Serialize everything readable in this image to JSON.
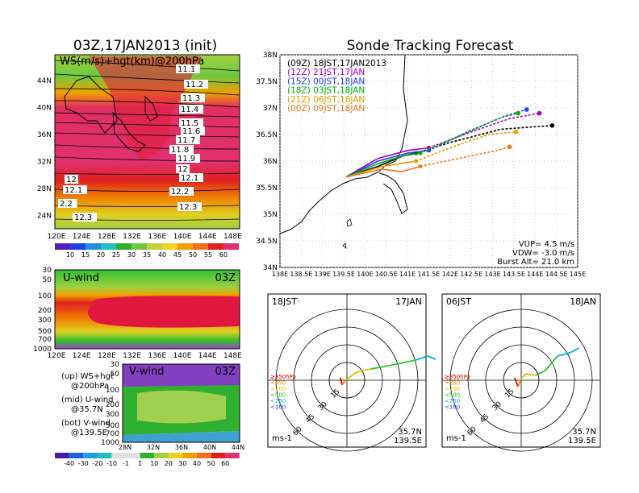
{
  "left": {
    "title": "03Z,17JAN2013 (init)",
    "ws_label": "WS(m/s)+hgt(km)@200hPa",
    "lat_ticks": [
      "44N",
      "40N",
      "36N",
      "32N",
      "28N",
      "24N"
    ],
    "lon_ticks": [
      "120E",
      "124E",
      "128E",
      "132E",
      "136E",
      "140E",
      "144E",
      "148E"
    ],
    "contours": [
      "11.1",
      "11.2",
      "11.3",
      "11.4",
      "11.5",
      "11.6",
      "11.7",
      "11.8",
      "11.9",
      "12",
      "12.1",
      "12.2",
      "12.3",
      "12",
      "12.1",
      "2.2",
      "12.3"
    ],
    "ws_colorbar": [
      "10",
      "15",
      "20",
      "25",
      "30",
      "35",
      "40",
      "45",
      "50",
      "55",
      "60"
    ],
    "uwind_title": "U-wind",
    "uwind_time": "03Z",
    "p_ticks": [
      "30",
      "50",
      "100",
      "200",
      "300",
      "500",
      "700",
      "1000"
    ],
    "vwind_title": "V-wind",
    "vwind_time": "03Z",
    "vlat_ticks": [
      "28N",
      "32N",
      "36N",
      "40N",
      "44N"
    ],
    "v_colorbar": [
      "-40",
      "-30",
      "-20",
      "-10",
      "-1",
      "1",
      "10",
      "20",
      "30",
      "40",
      "50",
      "60"
    ],
    "legend": [
      {
        "a": "(up) WS+hgt",
        "b": "@200hPa"
      },
      {
        "a": "(mid) U-wind",
        "b": "@35.7N"
      },
      {
        "a": "(bot) V-wind",
        "b": "@139.5E"
      }
    ]
  },
  "chart_data": {
    "type": "line",
    "title": "Sonde Tracking Forecast",
    "xlim": [
      138,
      145
    ],
    "ylim": [
      34,
      38
    ],
    "x_ticks": [
      "138E",
      "138.5E",
      "139E",
      "139.5E",
      "140E",
      "140.5E",
      "141E",
      "141.5E",
      "142E",
      "142.5E",
      "143E",
      "143.5E",
      "144E",
      "144.5E",
      "145E"
    ],
    "y_ticks": [
      "38N",
      "37.5N",
      "37N",
      "36.5N",
      "36N",
      "35.5N",
      "35N",
      "34.5N",
      "34N"
    ],
    "series": [
      {
        "name": "(09Z) 18JST,17JAN2013",
        "color": "#000000",
        "points": [
          [
            139.55,
            35.7
          ],
          [
            140.3,
            35.9
          ],
          [
            140.9,
            36.1
          ],
          [
            141.2,
            36.15
          ],
          [
            142.0,
            36.35
          ],
          [
            143.2,
            36.6
          ],
          [
            144.4,
            36.67
          ]
        ]
      },
      {
        "name": "(12Z) 21JST,17JAN",
        "color": "#a000c0",
        "points": [
          [
            139.55,
            35.7
          ],
          [
            140.3,
            36.05
          ],
          [
            141.0,
            36.2
          ],
          [
            141.5,
            36.25
          ],
          [
            142.5,
            36.55
          ],
          [
            143.4,
            36.8
          ],
          [
            144.1,
            36.9
          ]
        ]
      },
      {
        "name": "(15Z) 00JST,18JAN",
        "color": "#1e3cff",
        "points": [
          [
            139.55,
            35.7
          ],
          [
            140.3,
            36.0
          ],
          [
            141.0,
            36.15
          ],
          [
            141.5,
            36.2
          ],
          [
            142.4,
            36.55
          ],
          [
            143.3,
            36.85
          ],
          [
            143.8,
            36.97
          ]
        ]
      },
      {
        "name": "(18Z) 03JST,18JAN",
        "color": "#00b000",
        "points": [
          [
            139.55,
            35.7
          ],
          [
            140.3,
            35.95
          ],
          [
            140.9,
            36.1
          ],
          [
            141.3,
            36.15
          ],
          [
            142.3,
            36.5
          ],
          [
            143.2,
            36.82
          ],
          [
            143.6,
            36.9
          ]
        ]
      },
      {
        "name": "(21Z) 06JST,18JAN",
        "color": "#e0a000",
        "points": [
          [
            139.55,
            35.7
          ],
          [
            140.4,
            35.9
          ],
          [
            140.8,
            35.95
          ],
          [
            141.2,
            36.0
          ],
          [
            142.0,
            36.25
          ],
          [
            142.9,
            36.5
          ],
          [
            143.55,
            36.55
          ]
        ]
      },
      {
        "name": "(00Z) 09JST,18JAN",
        "color": "#f07820",
        "points": [
          [
            139.55,
            35.7
          ],
          [
            140.4,
            35.85
          ],
          [
            140.85,
            35.8
          ],
          [
            141.3,
            35.9
          ],
          [
            142.2,
            36.05
          ],
          [
            143.1,
            36.2
          ],
          [
            143.4,
            36.27
          ]
        ]
      }
    ],
    "info": [
      "VUP= 4.5 m/s",
      "VDW= -3.0 m/s",
      "Burst Alt= 21.0 km"
    ]
  },
  "hodographs": [
    {
      "time": "18JST",
      "date": "17JAN",
      "rings": [
        "15",
        "30",
        "45",
        "60"
      ],
      "lat": "35.7N",
      "lon": "139.5E",
      "unit": "ms-1"
    },
    {
      "time": "06JST",
      "date": "18JAN",
      "rings": [
        "15",
        "30",
        "45",
        "60"
      ],
      "lat": "35.7N",
      "lon": "139.5E",
      "unit": "ms-1"
    }
  ],
  "hodo_legend": [
    {
      "label": "≥850hPa",
      "color": "#e00000"
    },
    {
      "label": "<850",
      "color": "#f08000"
    },
    {
      "label": "<700",
      "color": "#e0c000"
    },
    {
      "label": "<500",
      "color": "#30c030"
    },
    {
      "label": "<250",
      "color": "#00b0e0"
    },
    {
      "label": "<100",
      "color": "#1e3cff"
    }
  ]
}
